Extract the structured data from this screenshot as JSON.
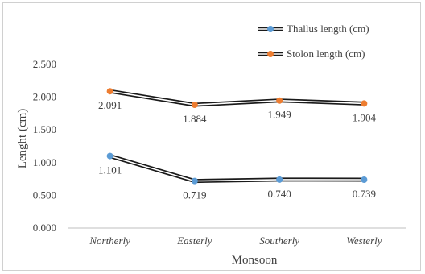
{
  "chart_data": {
    "type": "line",
    "categories": [
      "Northerly",
      "Easterly",
      "Southerly",
      "Westerly"
    ],
    "series": [
      {
        "name": "Thallus length (cm)",
        "values": [
          1.101,
          0.719,
          0.74,
          0.739
        ],
        "color": "#5b9bd5",
        "labels": [
          "1.101",
          "0.719",
          "0.740",
          "0.739"
        ]
      },
      {
        "name": "Stolon length (cm)",
        "values": [
          2.091,
          1.884,
          1.949,
          1.904
        ],
        "color": "#ed7d31",
        "labels": [
          "2.091",
          "1.884",
          "1.949",
          "1.904"
        ]
      }
    ],
    "xlabel": "Monsoon",
    "ylabel": "Lenght (cm)",
    "ylim": [
      0,
      2.5
    ],
    "yticks": [
      "0.000",
      "0.500",
      "1.000",
      "1.500",
      "2.000",
      "2.500"
    ],
    "grid": false,
    "legend_position": "top-right"
  }
}
